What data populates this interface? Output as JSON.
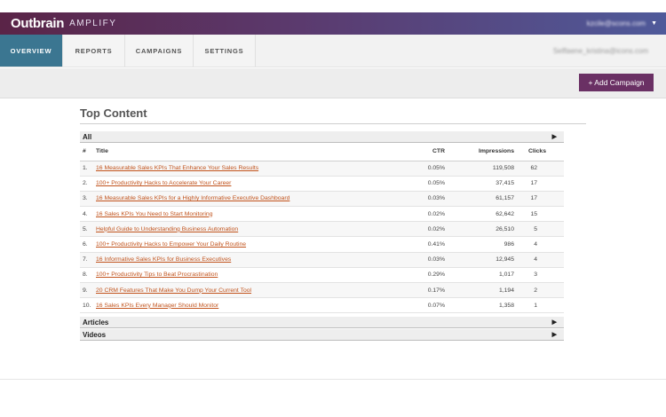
{
  "brand": {
    "logo": "Outbrain",
    "product": "AMPLIFY"
  },
  "user": {
    "email": "kzcile@scons.com",
    "account": "Selflaene_kristina@icons.com"
  },
  "tabs": [
    "OVERVIEW",
    "REPORTS",
    "CAMPAIGNS",
    "SETTINGS"
  ],
  "active_tab": "OVERVIEW",
  "actions": {
    "add_campaign": "+ Add Campaign"
  },
  "section": {
    "title": "Top Content"
  },
  "groups": {
    "all": "All",
    "articles": "Articles",
    "videos": "Videos"
  },
  "table": {
    "headers": {
      "num": "#",
      "title": "Title",
      "ctr": "CTR",
      "impressions": "Impressions",
      "clicks": "Clicks"
    },
    "rows": [
      {
        "num": "1.",
        "title": "16 Measurable Sales KPIs That Enhance Your Sales Results",
        "ctr": "0.05%",
        "impressions": "119,508",
        "clicks": "62"
      },
      {
        "num": "2.",
        "title": "100+ Productivity Hacks to Accelerate Your Career",
        "ctr": "0.05%",
        "impressions": "37,415",
        "clicks": "17"
      },
      {
        "num": "3.",
        "title": "16 Measurable Sales KPIs for a Highly Informative Executive Dashboard",
        "ctr": "0.03%",
        "impressions": "61,157",
        "clicks": "17"
      },
      {
        "num": "4.",
        "title": "16 Sales KPIs You Need to Start Monitoring",
        "ctr": "0.02%",
        "impressions": "62,642",
        "clicks": "15"
      },
      {
        "num": "5.",
        "title": "Helpful Guide to Understanding Business Automation",
        "ctr": "0.02%",
        "impressions": "26,510",
        "clicks": "5"
      },
      {
        "num": "6.",
        "title": "100+ Productivity Hacks to Empower Your Daily Routine",
        "ctr": "0.41%",
        "impressions": "986",
        "clicks": "4"
      },
      {
        "num": "7.",
        "title": "16 Informative Sales KPIs for Business Executives",
        "ctr": "0.03%",
        "impressions": "12,945",
        "clicks": "4"
      },
      {
        "num": "8.",
        "title": "100+ Productivity Tips to Beat Procrastination",
        "ctr": "0.29%",
        "impressions": "1,017",
        "clicks": "3"
      },
      {
        "num": "9.",
        "title": "20 CRM Features That Make You Dump Your Current Tool",
        "ctr": "0.17%",
        "impressions": "1,194",
        "clicks": "2"
      },
      {
        "num": "10.",
        "title": "16 Sales KPIs Every Manager Should Monitor",
        "ctr": "0.07%",
        "impressions": "1,358",
        "clicks": "1"
      }
    ]
  },
  "icons": {
    "caret": "caret-down-icon",
    "expand": "triangle-right-icon"
  },
  "colors": {
    "accent": "#3b7691",
    "button": "#6a3064",
    "link": "#c1531c"
  }
}
